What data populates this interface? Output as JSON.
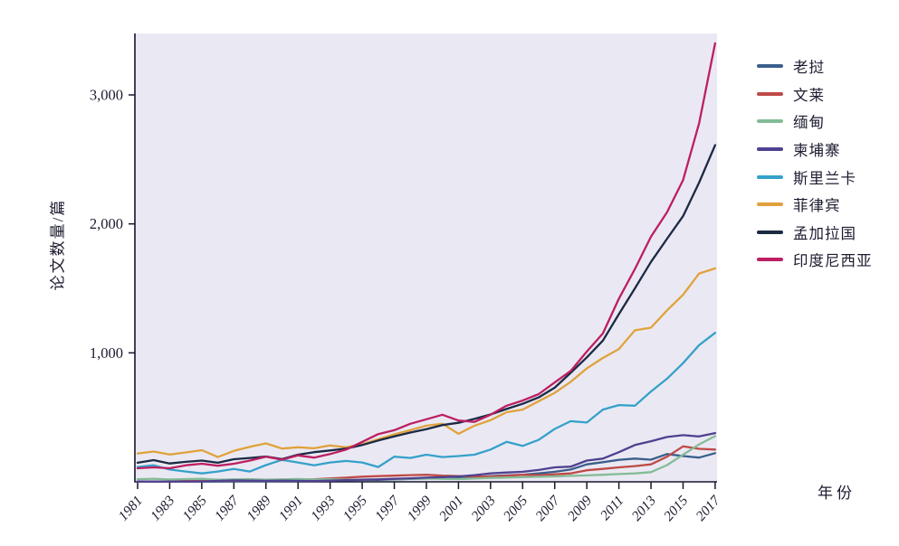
{
  "figure": {
    "background": "#ffffff",
    "plot_background": "#eae9f3",
    "axis_color": "#16162e",
    "text_color": "#1c1c30"
  },
  "chart_data": {
    "type": "line",
    "title": "",
    "xlabel": "年份",
    "ylabel": "论文数量/篇",
    "x": [
      1981,
      1982,
      1983,
      1984,
      1985,
      1986,
      1987,
      1988,
      1989,
      1990,
      1991,
      1992,
      1993,
      1994,
      1995,
      1996,
      1997,
      1998,
      1999,
      2000,
      2001,
      2002,
      2003,
      2004,
      2005,
      2006,
      2007,
      2008,
      2009,
      2010,
      2011,
      2012,
      2013,
      2014,
      2015,
      2016,
      2017
    ],
    "xlim": [
      1981,
      2017
    ],
    "ylim": [
      0,
      3480
    ],
    "grid": false,
    "legend_position": "right",
    "xticks": [
      1981,
      1983,
      1985,
      1987,
      1989,
      1991,
      1993,
      1995,
      1997,
      1999,
      2001,
      2003,
      2005,
      2007,
      2009,
      2011,
      2013,
      2015,
      2017
    ],
    "yticks": [
      {
        "value": 1000,
        "label": "1,000"
      },
      {
        "value": 2000,
        "label": "2,000"
      },
      {
        "value": 3000,
        "label": "3,000"
      }
    ],
    "series": [
      {
        "id": "laos",
        "name": "老挝",
        "color": "#3b5e8c",
        "values": [
          3,
          2,
          3,
          2,
          3,
          3,
          4,
          5,
          4,
          6,
          6,
          8,
          10,
          12,
          14,
          15,
          18,
          22,
          25,
          30,
          34,
          38,
          45,
          50,
          55,
          65,
          78,
          95,
          135,
          152,
          170,
          180,
          172,
          215,
          200,
          188,
          222
        ]
      },
      {
        "id": "brunei",
        "name": "文莱",
        "color": "#bf4a47",
        "values": [
          2,
          3,
          2,
          8,
          10,
          8,
          10,
          12,
          10,
          13,
          16,
          20,
          26,
          32,
          40,
          44,
          48,
          52,
          55,
          48,
          44,
          40,
          42,
          46,
          55,
          52,
          58,
          65,
          90,
          100,
          112,
          122,
          135,
          195,
          275,
          256,
          250
        ]
      },
      {
        "id": "myanmar",
        "name": "缅甸",
        "color": "#85bb97",
        "values": [
          20,
          24,
          18,
          21,
          23,
          16,
          19,
          21,
          16,
          19,
          22,
          18,
          20,
          17,
          16,
          18,
          20,
          23,
          26,
          23,
          21,
          25,
          30,
          33,
          36,
          39,
          42,
          46,
          50,
          55,
          60,
          65,
          75,
          130,
          210,
          290,
          355
        ]
      },
      {
        "id": "cambodia",
        "name": "柬埔寨",
        "color": "#4f4190",
        "values": [
          2,
          2,
          2,
          3,
          3,
          8,
          11,
          10,
          8,
          10,
          8,
          6,
          10,
          13,
          16,
          19,
          23,
          27,
          32,
          36,
          42,
          52,
          66,
          72,
          78,
          92,
          112,
          118,
          165,
          180,
          230,
          285,
          315,
          348,
          362,
          352,
          378
        ]
      },
      {
        "id": "sri-lanka",
        "name": "斯里兰卡",
        "color": "#35a1ca",
        "values": [
          115,
          128,
          95,
          80,
          65,
          80,
          100,
          80,
          130,
          170,
          150,
          128,
          150,
          162,
          150,
          115,
          195,
          185,
          210,
          192,
          200,
          210,
          250,
          310,
          278,
          325,
          410,
          470,
          460,
          560,
          595,
          590,
          700,
          800,
          920,
          1060,
          1155
        ]
      },
      {
        "id": "philippines",
        "name": "菲律宾",
        "color": "#e0a23c",
        "values": [
          220,
          235,
          212,
          228,
          245,
          192,
          240,
          272,
          298,
          258,
          268,
          260,
          282,
          268,
          292,
          330,
          368,
          400,
          435,
          450,
          372,
          435,
          478,
          540,
          560,
          625,
          690,
          775,
          880,
          960,
          1030,
          1175,
          1195,
          1330,
          1450,
          1615,
          1655
        ]
      },
      {
        "id": "bangladesh",
        "name": "孟加拉国",
        "color": "#1b2a44",
        "values": [
          148,
          168,
          142,
          155,
          165,
          148,
          175,
          185,
          196,
          176,
          210,
          230,
          243,
          258,
          285,
          320,
          352,
          382,
          408,
          440,
          458,
          488,
          522,
          565,
          605,
          655,
          730,
          845,
          965,
          1095,
          1300,
          1500,
          1705,
          1885,
          2060,
          2320,
          2610
        ]
      },
      {
        "id": "indonesia",
        "name": "印度尼西亚",
        "color": "#bd1f62",
        "values": [
          105,
          112,
          105,
          128,
          140,
          125,
          140,
          165,
          195,
          172,
          205,
          188,
          215,
          250,
          310,
          370,
          400,
          450,
          485,
          520,
          475,
          465,
          520,
          590,
          630,
          680,
          770,
          860,
          1010,
          1150,
          1420,
          1650,
          1900,
          2090,
          2340,
          2780,
          3400
        ]
      }
    ]
  }
}
